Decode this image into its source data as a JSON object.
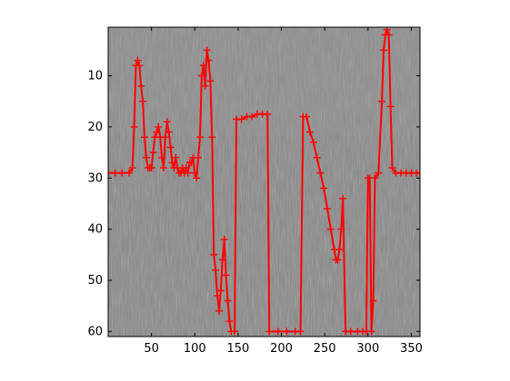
{
  "chart_data": {
    "type": "line",
    "title": "",
    "xlabel": "",
    "ylabel": "",
    "xlim": [
      0,
      360
    ],
    "ylim": [
      61,
      0.5
    ],
    "y_reversed": true,
    "grid": false,
    "legend": "none",
    "x_ticks": [
      50,
      100,
      150,
      200,
      250,
      300,
      350
    ],
    "y_ticks": [
      10,
      20,
      30,
      40,
      50,
      60
    ],
    "background": "grayscale-image",
    "series": [
      {
        "color": "#ff0000",
        "marker": "plus",
        "points": [
          [
            0,
            29
          ],
          [
            8,
            29
          ],
          [
            16,
            29
          ],
          [
            24,
            29
          ],
          [
            28,
            28
          ],
          [
            30,
            20
          ],
          [
            32,
            8
          ],
          [
            34,
            7
          ],
          [
            36,
            8
          ],
          [
            38,
            12
          ],
          [
            40,
            15
          ],
          [
            42,
            22
          ],
          [
            44,
            26
          ],
          [
            46,
            28
          ],
          [
            48,
            28
          ],
          [
            50,
            28
          ],
          [
            52,
            25
          ],
          [
            54,
            22
          ],
          [
            56,
            21
          ],
          [
            58,
            20
          ],
          [
            60,
            22
          ],
          [
            62,
            26
          ],
          [
            64,
            28
          ],
          [
            66,
            22
          ],
          [
            68,
            19
          ],
          [
            70,
            21
          ],
          [
            72,
            24
          ],
          [
            74,
            27
          ],
          [
            76,
            28
          ],
          [
            78,
            26
          ],
          [
            80,
            28
          ],
          [
            82,
            29
          ],
          [
            84,
            29
          ],
          [
            86,
            28
          ],
          [
            88,
            29
          ],
          [
            90,
            28
          ],
          [
            92,
            29
          ],
          [
            94,
            27
          ],
          [
            96,
            27
          ],
          [
            98,
            26
          ],
          [
            100,
            29
          ],
          [
            102,
            30
          ],
          [
            104,
            26
          ],
          [
            106,
            22
          ],
          [
            108,
            10
          ],
          [
            110,
            8
          ],
          [
            112,
            12
          ],
          [
            114,
            5
          ],
          [
            116,
            7
          ],
          [
            118,
            11
          ],
          [
            120,
            22
          ],
          [
            122,
            45
          ],
          [
            124,
            48
          ],
          [
            126,
            53
          ],
          [
            128,
            56
          ],
          [
            130,
            52
          ],
          [
            132,
            46
          ],
          [
            134,
            42
          ],
          [
            136,
            49
          ],
          [
            138,
            54
          ],
          [
            140,
            58
          ],
          [
            142,
            60
          ],
          [
            146,
            60
          ],
          [
            148,
            18.5
          ],
          [
            154,
            18.5
          ],
          [
            160,
            18
          ],
          [
            166,
            18
          ],
          [
            172,
            17.5
          ],
          [
            178,
            17.5
          ],
          [
            184,
            17.5
          ],
          [
            186,
            60
          ],
          [
            196,
            60
          ],
          [
            206,
            60
          ],
          [
            216,
            60
          ],
          [
            222,
            60
          ],
          [
            225,
            18
          ],
          [
            229,
            18
          ],
          [
            233,
            21
          ],
          [
            237,
            23
          ],
          [
            241,
            26
          ],
          [
            245,
            29
          ],
          [
            249,
            32
          ],
          [
            253,
            36
          ],
          [
            257,
            40
          ],
          [
            261,
            44
          ],
          [
            263,
            46
          ],
          [
            265,
            46
          ],
          [
            267,
            44
          ],
          [
            269,
            40
          ],
          [
            271,
            34
          ],
          [
            274,
            60
          ],
          [
            280,
            60
          ],
          [
            288,
            60
          ],
          [
            294,
            60
          ],
          [
            298,
            60
          ],
          [
            300,
            30
          ],
          [
            302,
            30
          ],
          [
            304,
            60
          ],
          [
            306,
            54
          ],
          [
            308,
            30
          ],
          [
            312,
            29
          ],
          [
            316,
            15
          ],
          [
            318,
            5
          ],
          [
            320,
            2
          ],
          [
            322,
            1
          ],
          [
            324,
            2
          ],
          [
            326,
            16
          ],
          [
            328,
            28
          ],
          [
            332,
            29
          ],
          [
            338,
            29
          ],
          [
            344,
            29
          ],
          [
            350,
            29
          ],
          [
            356,
            29
          ],
          [
            360,
            29
          ]
        ]
      }
    ]
  }
}
